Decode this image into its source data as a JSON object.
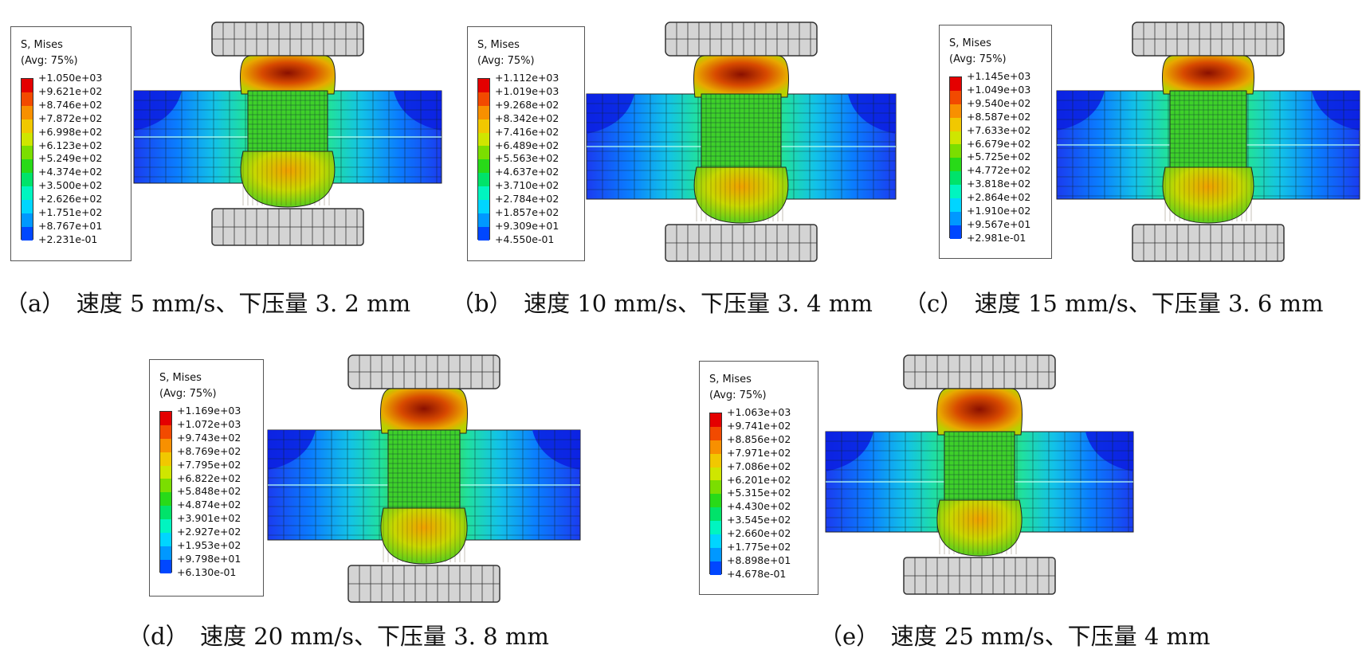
{
  "colorscale": [
    "#0a00ee",
    "#0047ff",
    "#0098ff",
    "#00d5ff",
    "#00f5c0",
    "#00e36a",
    "#28da18",
    "#7bde00",
    "#cfe600",
    "#f1c800",
    "#f89000",
    "#f24a00",
    "#e40000"
  ],
  "panels": [
    {
      "caption": "（a）　速度 5 mm/s、下压量 3. 2 mm",
      "legend": {
        "title1": "S, Mises",
        "title2": "(Avg: 75%)",
        "values": [
          "+1.050e+03",
          "+9.621e+02",
          "+8.746e+02",
          "+7.872e+02",
          "+6.998e+02",
          "+6.123e+02",
          "+5.249e+02",
          "+4.374e+02",
          "+3.500e+02",
          "+2.626e+02",
          "+1.751e+02",
          "+8.767e+01",
          "+2.231e-01"
        ]
      }
    },
    {
      "caption": "（b）　速度 10 mm/s、下压量 3. 4 mm",
      "legend": {
        "title1": "S, Mises",
        "title2": "(Avg: 75%)",
        "values": [
          "+1.112e+03",
          "+1.019e+03",
          "+9.268e+02",
          "+8.342e+02",
          "+7.416e+02",
          "+6.489e+02",
          "+5.563e+02",
          "+4.637e+02",
          "+3.710e+02",
          "+2.784e+02",
          "+1.857e+02",
          "+9.309e+01",
          "+4.550e-01"
        ]
      }
    },
    {
      "caption": "（c）　速度 15 mm/s、下压量 3. 6 mm",
      "legend": {
        "title1": "S, Mises",
        "title2": "(Avg: 75%)",
        "values": [
          "+1.145e+03",
          "+1.049e+03",
          "+9.540e+02",
          "+8.587e+02",
          "+7.633e+02",
          "+6.679e+02",
          "+5.725e+02",
          "+4.772e+02",
          "+3.818e+02",
          "+2.864e+02",
          "+1.910e+02",
          "+9.567e+01",
          "+2.981e-01"
        ]
      }
    },
    {
      "caption": "（d）　速度 20 mm/s、下压量 3. 8 mm",
      "legend": {
        "title1": "S, Mises",
        "title2": "(Avg: 75%)",
        "values": [
          "+1.169e+03",
          "+1.072e+03",
          "+9.743e+02",
          "+8.769e+02",
          "+7.795e+02",
          "+6.822e+02",
          "+5.848e+02",
          "+4.874e+02",
          "+3.901e+02",
          "+2.927e+02",
          "+1.953e+02",
          "+9.798e+01",
          "+6.130e-01"
        ]
      }
    },
    {
      "caption": "（e）　速度 25 mm/s、下压量 4 mm",
      "legend": {
        "title1": "S, Mises",
        "title2": "(Avg: 75%)",
        "values": [
          "+1.063e+03",
          "+9.741e+02",
          "+8.856e+02",
          "+7.971e+02",
          "+7.086e+02",
          "+6.201e+02",
          "+5.315e+02",
          "+4.430e+02",
          "+3.545e+02",
          "+2.660e+02",
          "+1.775e+02",
          "+8.898e+01",
          "+4.678e-01"
        ]
      }
    }
  ]
}
